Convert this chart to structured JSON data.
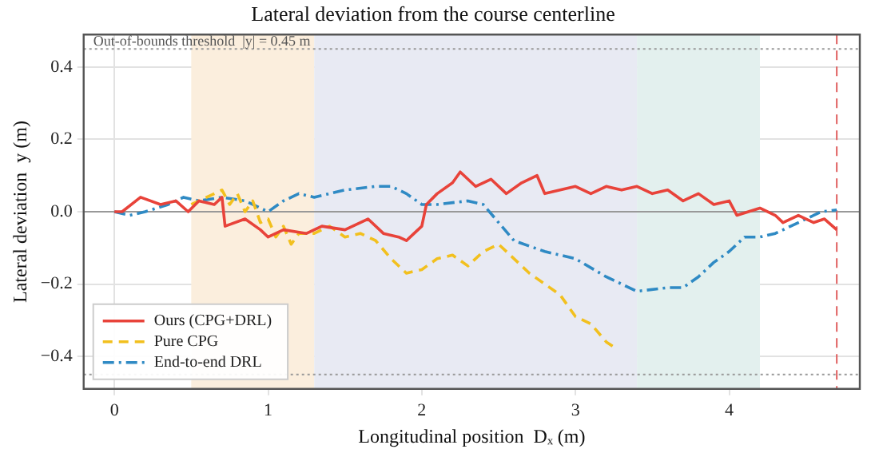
{
  "chart_data": {
    "type": "line",
    "title": "Lateral deviation from the course centerline",
    "xlabel": "Longitudinal position  Dₓ (m)",
    "ylabel": "Lateral deviation  y (m)",
    "xlim": [
      -0.2,
      4.85
    ],
    "ylim": [
      -0.49,
      0.49
    ],
    "xticks": [
      0,
      1,
      2,
      3,
      4
    ],
    "yticks": [
      {
        "value": -0.4,
        "label": "−0.4"
      },
      {
        "value": -0.2,
        "label": "−0.2"
      },
      {
        "value": 0,
        "label": "0.0"
      },
      {
        "value": 0.2,
        "label": "0.2"
      },
      {
        "value": 0.4,
        "label": "0.4"
      }
    ],
    "grid": true,
    "legend": "bottom left",
    "marker": "none",
    "bands": [
      {
        "axis": "x",
        "from": 0.5,
        "to": 1.3,
        "color": "#fbeedd"
      },
      {
        "axis": "x",
        "from": 1.3,
        "to": 3.4,
        "color": "#e8eaf3"
      },
      {
        "axis": "x",
        "from": 3.4,
        "to": 4.2,
        "color": "#e3f0ee"
      }
    ],
    "ref_lines": [
      {
        "axis": "y",
        "value": 0.45,
        "label": "Out-of-bounds threshold  |y| = 0.45 m",
        "color": "#999999",
        "line_style": "dotted"
      },
      {
        "axis": "y",
        "value": -0.45,
        "color": "#999999",
        "line_style": "dotted"
      },
      {
        "axis": "y",
        "value": 0,
        "color": "#999999",
        "line_style": "solid"
      },
      {
        "axis": "x",
        "value": 4.7,
        "color": "#e06060",
        "line_style": "dashed"
      }
    ],
    "series": [
      {
        "name": "Ours (CPG+DRL)",
        "color": "#e8433a",
        "line_style": "solid",
        "x": [
          0,
          0.05,
          0.17,
          0.3,
          0.4,
          0.48,
          0.55,
          0.65,
          0.7,
          0.72,
          0.85,
          0.95,
          1.0,
          1.1,
          1.25,
          1.35,
          1.5,
          1.6,
          1.65,
          1.75,
          1.85,
          1.9,
          1.95,
          2.0,
          2.03,
          2.1,
          2.2,
          2.25,
          2.35,
          2.45,
          2.55,
          2.65,
          2.75,
          2.8,
          2.9,
          3.0,
          3.1,
          3.2,
          3.3,
          3.4,
          3.5,
          3.6,
          3.7,
          3.8,
          3.9,
          4.0,
          4.05,
          4.2,
          4.3,
          4.35,
          4.45,
          4.55,
          4.62,
          4.7
        ],
        "values": [
          0,
          0,
          0.04,
          0.02,
          0.03,
          0,
          0.03,
          0.02,
          0.04,
          -0.04,
          -0.02,
          -0.05,
          -0.07,
          -0.05,
          -0.06,
          -0.04,
          -0.05,
          -0.03,
          -0.02,
          -0.06,
          -0.07,
          -0.08,
          -0.06,
          -0.04,
          0.02,
          0.05,
          0.08,
          0.11,
          0.07,
          0.09,
          0.05,
          0.08,
          0.1,
          0.05,
          0.06,
          0.07,
          0.05,
          0.07,
          0.06,
          0.07,
          0.05,
          0.06,
          0.03,
          0.05,
          0.02,
          0.03,
          -0.01,
          0.01,
          -0.01,
          -0.03,
          -0.01,
          -0.03,
          -0.02,
          -0.05
        ]
      },
      {
        "name": "Pure CPG",
        "color": "#f2c01e",
        "line_style": "dashed",
        "x": [
          0.5,
          0.6,
          0.7,
          0.75,
          0.8,
          0.85,
          0.9,
          0.95,
          1.0,
          1.05,
          1.1,
          1.15,
          1.2,
          1.3,
          1.4,
          1.5,
          1.6,
          1.7,
          1.8,
          1.9,
          2.0,
          2.1,
          2.2,
          2.3,
          2.4,
          2.5,
          2.6,
          2.7,
          2.8,
          2.9,
          3.0,
          3.1,
          3.2,
          3.27
        ],
        "values": [
          0.02,
          0.04,
          0.06,
          0.02,
          0.05,
          0.0,
          0.03,
          -0.03,
          -0.02,
          -0.07,
          -0.04,
          -0.09,
          -0.06,
          -0.06,
          -0.04,
          -0.07,
          -0.06,
          -0.08,
          -0.13,
          -0.17,
          -0.16,
          -0.13,
          -0.12,
          -0.15,
          -0.11,
          -0.09,
          -0.13,
          -0.17,
          -0.2,
          -0.23,
          -0.29,
          -0.31,
          -0.36,
          -0.38
        ]
      },
      {
        "name": "End-to-end DRL",
        "color": "#2f8ac4",
        "line_style": "dashdot",
        "x": [
          0,
          0.1,
          0.2,
          0.35,
          0.45,
          0.55,
          0.7,
          0.85,
          1.0,
          1.1,
          1.2,
          1.3,
          1.5,
          1.7,
          1.8,
          1.9,
          2.0,
          2.1,
          2.3,
          2.4,
          2.5,
          2.6,
          2.8,
          3.0,
          3.2,
          3.4,
          3.6,
          3.7,
          3.8,
          3.9,
          4.0,
          4.05,
          4.1,
          4.2,
          4.3,
          4.4,
          4.5,
          4.6,
          4.7
        ],
        "values": [
          0,
          -0.01,
          0,
          0.02,
          0.04,
          0.03,
          0.04,
          0.03,
          0,
          0.03,
          0.05,
          0.04,
          0.06,
          0.07,
          0.07,
          0.05,
          0.02,
          0.02,
          0.03,
          0.02,
          -0.03,
          -0.08,
          -0.11,
          -0.13,
          -0.18,
          -0.22,
          -0.21,
          -0.21,
          -0.18,
          -0.14,
          -0.11,
          -0.09,
          -0.07,
          -0.07,
          -0.06,
          -0.04,
          -0.02,
          0,
          0.005
        ]
      }
    ]
  }
}
